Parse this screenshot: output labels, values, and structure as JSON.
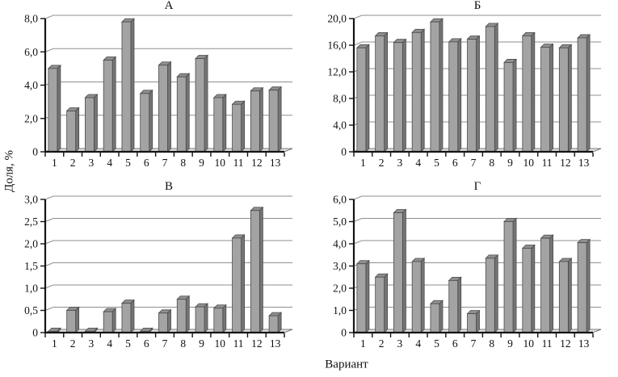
{
  "ylabel": "Доля, %",
  "xlabel": "Вариант",
  "colors": {
    "bar_front": "#a3a3a3",
    "bar_side": "#757575",
    "bar_top": "#8f8f8f",
    "bar_stroke": "#4a4a4a",
    "grid": "#8f8f8f",
    "axis": "#141414",
    "floor": "#e3e3e3",
    "floor_stroke": "#555555",
    "text": "#111111"
  },
  "chart_data": [
    {
      "type": "bar",
      "title": "А",
      "categories": [
        "1",
        "2",
        "3",
        "4",
        "5",
        "6",
        "7",
        "8",
        "9",
        "10",
        "11",
        "12",
        "13"
      ],
      "values": [
        5.0,
        2.45,
        3.25,
        5.5,
        7.8,
        3.5,
        5.2,
        4.5,
        5.6,
        3.25,
        2.85,
        3.65,
        3.7
      ],
      "ylim": [
        0,
        8
      ],
      "ytick_labels": [
        "0",
        "2,0",
        "4,0",
        "6,0",
        "8,0"
      ],
      "grid": true,
      "legend": false
    },
    {
      "type": "bar",
      "title": "Б",
      "categories": [
        "1",
        "2",
        "3",
        "4",
        "5",
        "6",
        "7",
        "8",
        "9",
        "10",
        "11",
        "12",
        "13"
      ],
      "values": [
        15.6,
        17.4,
        16.4,
        17.9,
        19.5,
        16.5,
        16.9,
        18.8,
        13.4,
        17.4,
        15.7,
        15.6,
        17.1
      ],
      "ylim": [
        0,
        20
      ],
      "ytick_labels": [
        "0",
        "4,0",
        "8,0",
        "12,0",
        "16,0",
        "20,0"
      ],
      "grid": true,
      "legend": false
    },
    {
      "type": "bar",
      "title": "В",
      "categories": [
        "1",
        "2",
        "3",
        "4",
        "5",
        "6",
        "7",
        "8",
        "9",
        "10",
        "11",
        "12",
        "13"
      ],
      "values": [
        0.03,
        0.5,
        0.03,
        0.47,
        0.66,
        0.03,
        0.44,
        0.75,
        0.58,
        0.55,
        2.13,
        2.75,
        0.38
      ],
      "ylim": [
        0,
        3
      ],
      "ytick_labels": [
        "0",
        "0,5",
        "1,0",
        "1,5",
        "2,0",
        "2,5",
        "3,0"
      ],
      "grid": true,
      "legend": false
    },
    {
      "type": "bar",
      "title": "Г",
      "categories": [
        "1",
        "2",
        "3",
        "4",
        "5",
        "6",
        "7",
        "8",
        "9",
        "10",
        "11",
        "12",
        "13"
      ],
      "values": [
        3.1,
        2.5,
        5.4,
        3.2,
        1.3,
        2.35,
        0.85,
        3.35,
        5.0,
        3.8,
        4.25,
        3.2,
        4.05
      ],
      "ylim": [
        0,
        6
      ],
      "ytick_labels": [
        "0",
        "1,0",
        "2,0",
        "3,0",
        "4,0",
        "5,0",
        "6,0"
      ],
      "grid": true,
      "legend": false
    }
  ]
}
